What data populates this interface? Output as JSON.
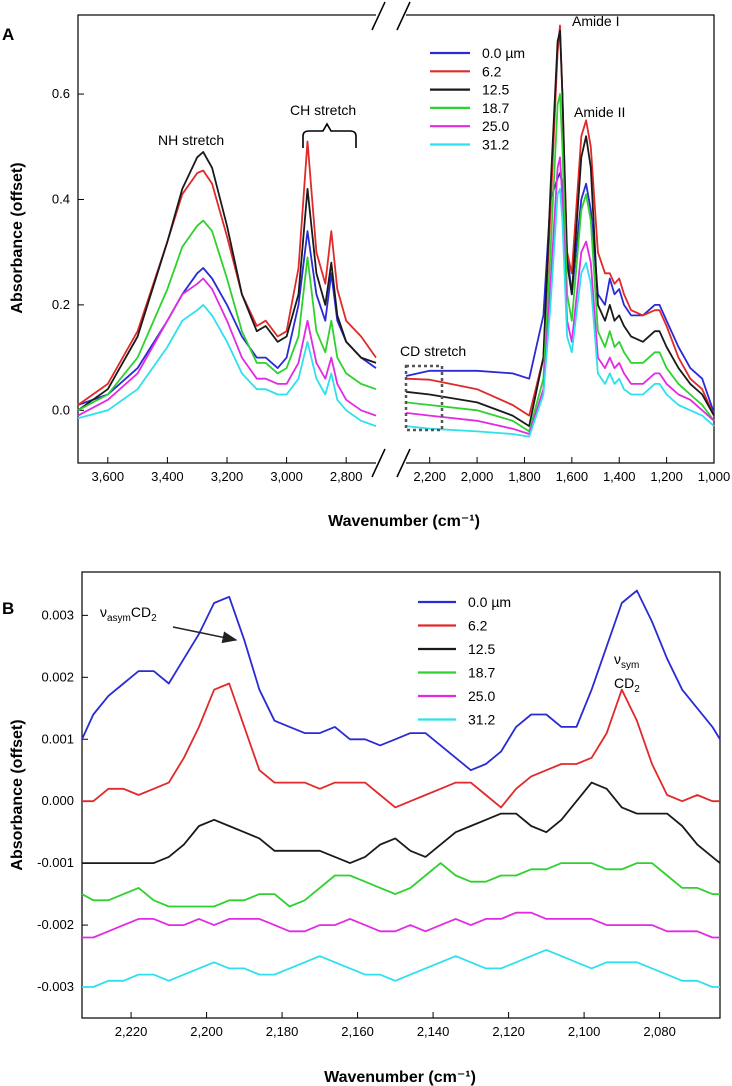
{
  "colors": {
    "s0": "#2a2ad6",
    "s1": "#e02a2a",
    "s2": "#1a1a1a",
    "s3": "#2fd12f",
    "s4": "#e32ae3",
    "s5": "#2ee0ee"
  },
  "chart_data": [
    {
      "id": "A",
      "type": "line",
      "panel_label": "A",
      "xlabel": "Wavenumber (cm⁻¹)",
      "ylabel": "Absorbance (offset)",
      "xlim": [
        3700,
        1000
      ],
      "axis_break": [
        2700,
        2300
      ],
      "ylim": [
        -0.1,
        0.75
      ],
      "yticks": [
        "0.0",
        "0.2",
        "0.4",
        "0.6"
      ],
      "ytick_values": [
        0.0,
        0.2,
        0.4,
        0.6
      ],
      "xticks": [
        "3,600",
        "3,400",
        "3,200",
        "3,000",
        "2,800",
        "2,200",
        "2,000",
        "1,800",
        "1,600",
        "1,400",
        "1,200",
        "1,000"
      ],
      "xtick_values": [
        3600,
        3400,
        3200,
        3000,
        2800,
        2200,
        2000,
        1800,
        1600,
        1400,
        1200,
        1000
      ],
      "legend": {
        "placement": "top-center",
        "labels": [
          "0.0 µm",
          "6.2",
          "12.5",
          "18.7",
          "25.0",
          "31.2"
        ]
      },
      "annotations": {
        "nh": "NH stretch",
        "ch": "CH stretch",
        "cd": "CD stretch",
        "amide1": "Amide I",
        "amide2": "Amide II"
      },
      "x": [
        3700,
        3600,
        3500,
        3400,
        3350,
        3300,
        3280,
        3250,
        3200,
        3150,
        3100,
        3070,
        3030,
        3000,
        2960,
        2930,
        2900,
        2870,
        2850,
        2830,
        2800,
        2750,
        2700,
        2300,
        2200,
        2000,
        1850,
        1780,
        1720,
        1690,
        1660,
        1650,
        1640,
        1620,
        1600,
        1560,
        1540,
        1520,
        1490,
        1460,
        1440,
        1420,
        1400,
        1380,
        1350,
        1300,
        1250,
        1230,
        1200,
        1150,
        1100,
        1050,
        1000
      ],
      "series": [
        {
          "name": "0.0 µm",
          "color_key": "s0",
          "values": [
            0.01,
            0.03,
            0.08,
            0.17,
            0.22,
            0.26,
            0.27,
            0.25,
            0.2,
            0.14,
            0.1,
            0.1,
            0.08,
            0.1,
            0.2,
            0.34,
            0.22,
            0.17,
            0.26,
            0.17,
            0.13,
            0.1,
            0.08,
            0.065,
            0.075,
            0.075,
            0.07,
            0.06,
            0.18,
            0.4,
            0.44,
            0.45,
            0.43,
            0.3,
            0.22,
            0.4,
            0.43,
            0.38,
            0.22,
            0.2,
            0.25,
            0.22,
            0.23,
            0.2,
            0.18,
            0.18,
            0.2,
            0.2,
            0.17,
            0.12,
            0.08,
            0.06,
            -0.005
          ]
        },
        {
          "name": "6.2",
          "color_key": "s1",
          "values": [
            0.01,
            0.05,
            0.15,
            0.32,
            0.41,
            0.45,
            0.455,
            0.43,
            0.33,
            0.22,
            0.16,
            0.17,
            0.14,
            0.15,
            0.27,
            0.51,
            0.3,
            0.24,
            0.34,
            0.23,
            0.17,
            0.14,
            0.1,
            0.06,
            0.058,
            0.04,
            0.01,
            -0.01,
            0.1,
            0.38,
            0.68,
            0.73,
            0.6,
            0.3,
            0.26,
            0.52,
            0.55,
            0.5,
            0.3,
            0.26,
            0.26,
            0.24,
            0.25,
            0.22,
            0.19,
            0.18,
            0.19,
            0.19,
            0.16,
            0.1,
            0.06,
            0.04,
            -0.01
          ]
        },
        {
          "name": "12.5",
          "color_key": "s2",
          "values": [
            0.0,
            0.04,
            0.14,
            0.32,
            0.42,
            0.48,
            0.49,
            0.46,
            0.35,
            0.22,
            0.15,
            0.16,
            0.13,
            0.14,
            0.22,
            0.42,
            0.26,
            0.2,
            0.28,
            0.18,
            0.13,
            0.1,
            0.09,
            0.035,
            0.03,
            0.015,
            -0.01,
            -0.03,
            0.1,
            0.42,
            0.7,
            0.72,
            0.6,
            0.28,
            0.22,
            0.48,
            0.52,
            0.46,
            0.2,
            0.17,
            0.2,
            0.17,
            0.18,
            0.16,
            0.14,
            0.13,
            0.15,
            0.15,
            0.12,
            0.08,
            0.05,
            0.03,
            -0.01
          ]
        },
        {
          "name": "18.7",
          "color_key": "s3",
          "values": [
            0.0,
            0.03,
            0.1,
            0.23,
            0.31,
            0.35,
            0.36,
            0.34,
            0.25,
            0.15,
            0.09,
            0.09,
            0.07,
            0.08,
            0.14,
            0.29,
            0.15,
            0.11,
            0.17,
            0.1,
            0.07,
            0.05,
            0.04,
            0.015,
            0.01,
            0.0,
            -0.02,
            -0.04,
            0.06,
            0.3,
            0.58,
            0.6,
            0.5,
            0.22,
            0.17,
            0.38,
            0.41,
            0.36,
            0.15,
            0.12,
            0.15,
            0.12,
            0.13,
            0.11,
            0.09,
            0.09,
            0.11,
            0.11,
            0.08,
            0.05,
            0.03,
            0.01,
            -0.02
          ]
        },
        {
          "name": "25.0",
          "color_key": "s4",
          "values": [
            -0.01,
            0.02,
            0.07,
            0.17,
            0.22,
            0.24,
            0.25,
            0.23,
            0.17,
            0.1,
            0.06,
            0.06,
            0.05,
            0.05,
            0.09,
            0.17,
            0.09,
            0.06,
            0.1,
            0.05,
            0.02,
            0.0,
            -0.01,
            -0.005,
            -0.01,
            -0.02,
            -0.035,
            -0.045,
            0.04,
            0.24,
            0.46,
            0.48,
            0.4,
            0.17,
            0.13,
            0.3,
            0.32,
            0.28,
            0.1,
            0.08,
            0.1,
            0.08,
            0.09,
            0.07,
            0.05,
            0.05,
            0.07,
            0.07,
            0.05,
            0.03,
            0.02,
            0.0,
            -0.02
          ]
        },
        {
          "name": "31.2",
          "color_key": "s5",
          "values": [
            -0.015,
            0.0,
            0.04,
            0.12,
            0.17,
            0.19,
            0.2,
            0.18,
            0.13,
            0.07,
            0.04,
            0.04,
            0.03,
            0.03,
            0.06,
            0.13,
            0.06,
            0.03,
            0.07,
            0.02,
            0.0,
            -0.02,
            -0.03,
            -0.03,
            -0.035,
            -0.04,
            -0.045,
            -0.05,
            0.03,
            0.2,
            0.41,
            0.42,
            0.36,
            0.14,
            0.11,
            0.26,
            0.28,
            0.24,
            0.07,
            0.05,
            0.07,
            0.05,
            0.06,
            0.04,
            0.03,
            0.03,
            0.05,
            0.05,
            0.03,
            0.01,
            0.0,
            -0.01,
            -0.03
          ]
        }
      ]
    },
    {
      "id": "B",
      "type": "line",
      "panel_label": "B",
      "xlabel": "Wavenumber (cm⁻¹)",
      "ylabel": "Absorbance (offset)",
      "xlim": [
        2233,
        2064
      ],
      "ylim": [
        -0.0035,
        0.0037
      ],
      "yticks": [
        "0.003",
        "0.002",
        "0.001",
        "0.000",
        "-0.001",
        "-0.002",
        "-0.003"
      ],
      "ytick_values": [
        0.003,
        0.002,
        0.001,
        0.0,
        -0.001,
        -0.002,
        -0.003
      ],
      "xticks": [
        "2,220",
        "2,200",
        "2,180",
        "2,160",
        "2,140",
        "2,120",
        "2,100",
        "2,080"
      ],
      "xtick_values": [
        2220,
        2200,
        2180,
        2160,
        2140,
        2120,
        2100,
        2080
      ],
      "legend": {
        "placement": "top-center",
        "labels": [
          "0.0 µm",
          "6.2",
          "12.5",
          "18.7",
          "25.0",
          "31.2"
        ]
      },
      "annotations": {
        "asym_base": "ν",
        "asym_sub": "asym",
        "asym_tail": "CD",
        "asym_tail_sub": "2",
        "sym_base": "ν",
        "sym_sub": "sym",
        "sym_tail": "CD",
        "sym_tail_sub": "2"
      },
      "x": [
        2233,
        2230,
        2226,
        2222,
        2218,
        2214,
        2210,
        2206,
        2202,
        2198,
        2194,
        2190,
        2186,
        2182,
        2178,
        2174,
        2170,
        2166,
        2162,
        2158,
        2154,
        2150,
        2146,
        2142,
        2138,
        2134,
        2130,
        2126,
        2122,
        2118,
        2114,
        2110,
        2106,
        2102,
        2098,
        2094,
        2090,
        2086,
        2082,
        2078,
        2074,
        2070,
        2066,
        2064
      ],
      "series": [
        {
          "name": "0.0 µm",
          "color_key": "s0",
          "values": [
            0.001,
            0.0014,
            0.0017,
            0.0019,
            0.0021,
            0.0021,
            0.0019,
            0.0023,
            0.0027,
            0.0032,
            0.0033,
            0.0026,
            0.0018,
            0.0013,
            0.0012,
            0.0011,
            0.0011,
            0.0012,
            0.001,
            0.001,
            0.0009,
            0.001,
            0.0011,
            0.0011,
            0.0009,
            0.0007,
            0.0005,
            0.0006,
            0.0008,
            0.0012,
            0.0014,
            0.0014,
            0.0012,
            0.0012,
            0.0018,
            0.0025,
            0.0032,
            0.0034,
            0.0029,
            0.0023,
            0.0018,
            0.0015,
            0.0012,
            0.001
          ]
        },
        {
          "name": "6.2",
          "color_key": "s1",
          "values": [
            0.0,
            0.0,
            0.0002,
            0.0002,
            0.0001,
            0.0002,
            0.0003,
            0.0007,
            0.0012,
            0.0018,
            0.0019,
            0.0012,
            0.0005,
            0.0003,
            0.0003,
            0.0003,
            0.0002,
            0.0003,
            0.0003,
            0.0003,
            0.0001,
            -0.0001,
            0.0,
            0.0001,
            0.0002,
            0.0003,
            0.0003,
            0.0001,
            -0.0001,
            0.0002,
            0.0004,
            0.0005,
            0.0006,
            0.0006,
            0.0007,
            0.0011,
            0.0018,
            0.0013,
            0.0006,
            0.0001,
            0.0,
            0.0001,
            0.0,
            0.0
          ]
        },
        {
          "name": "12.5",
          "color_key": "s2",
          "values": [
            -0.001,
            -0.001,
            -0.001,
            -0.001,
            -0.001,
            -0.001,
            -0.0009,
            -0.0007,
            -0.0004,
            -0.0003,
            -0.0004,
            -0.0005,
            -0.0006,
            -0.0008,
            -0.0008,
            -0.0008,
            -0.0008,
            -0.0009,
            -0.001,
            -0.0009,
            -0.0007,
            -0.0006,
            -0.0008,
            -0.0009,
            -0.0007,
            -0.0005,
            -0.0004,
            -0.0003,
            -0.0002,
            -0.0002,
            -0.0004,
            -0.0005,
            -0.0003,
            0.0,
            0.0003,
            0.0002,
            -0.0001,
            -0.0002,
            -0.0002,
            -0.0002,
            -0.0004,
            -0.0007,
            -0.0009,
            -0.001
          ]
        },
        {
          "name": "18.7",
          "color_key": "s3",
          "values": [
            -0.0015,
            -0.0016,
            -0.0016,
            -0.0015,
            -0.0014,
            -0.0016,
            -0.0017,
            -0.0017,
            -0.0017,
            -0.0017,
            -0.0016,
            -0.0016,
            -0.0015,
            -0.0015,
            -0.0017,
            -0.0016,
            -0.0014,
            -0.0012,
            -0.0012,
            -0.0013,
            -0.0014,
            -0.0015,
            -0.0014,
            -0.0012,
            -0.001,
            -0.0012,
            -0.0013,
            -0.0013,
            -0.0012,
            -0.0012,
            -0.0011,
            -0.0011,
            -0.001,
            -0.001,
            -0.001,
            -0.0011,
            -0.0011,
            -0.001,
            -0.001,
            -0.0012,
            -0.0014,
            -0.0014,
            -0.0015,
            -0.0015
          ]
        },
        {
          "name": "25.0",
          "color_key": "s4",
          "values": [
            -0.0022,
            -0.0022,
            -0.0021,
            -0.002,
            -0.0019,
            -0.0019,
            -0.002,
            -0.002,
            -0.0019,
            -0.002,
            -0.0019,
            -0.0019,
            -0.0019,
            -0.002,
            -0.0021,
            -0.0021,
            -0.002,
            -0.002,
            -0.0019,
            -0.002,
            -0.0021,
            -0.0021,
            -0.002,
            -0.0021,
            -0.002,
            -0.0019,
            -0.002,
            -0.0019,
            -0.0019,
            -0.0018,
            -0.0018,
            -0.0019,
            -0.0019,
            -0.0019,
            -0.0019,
            -0.002,
            -0.002,
            -0.002,
            -0.002,
            -0.0021,
            -0.0021,
            -0.0021,
            -0.0022,
            -0.0022
          ]
        },
        {
          "name": "31.2",
          "color_key": "s5",
          "values": [
            -0.003,
            -0.003,
            -0.0029,
            -0.0029,
            -0.0028,
            -0.0028,
            -0.0029,
            -0.0028,
            -0.0027,
            -0.0026,
            -0.0027,
            -0.0027,
            -0.0028,
            -0.0028,
            -0.0027,
            -0.0026,
            -0.0025,
            -0.0026,
            -0.0027,
            -0.0028,
            -0.0028,
            -0.0029,
            -0.0028,
            -0.0027,
            -0.0026,
            -0.0025,
            -0.0026,
            -0.0027,
            -0.0027,
            -0.0026,
            -0.0025,
            -0.0024,
            -0.0025,
            -0.0026,
            -0.0027,
            -0.0026,
            -0.0026,
            -0.0026,
            -0.0027,
            -0.0028,
            -0.0029,
            -0.0029,
            -0.003,
            -0.003
          ]
        }
      ]
    }
  ]
}
